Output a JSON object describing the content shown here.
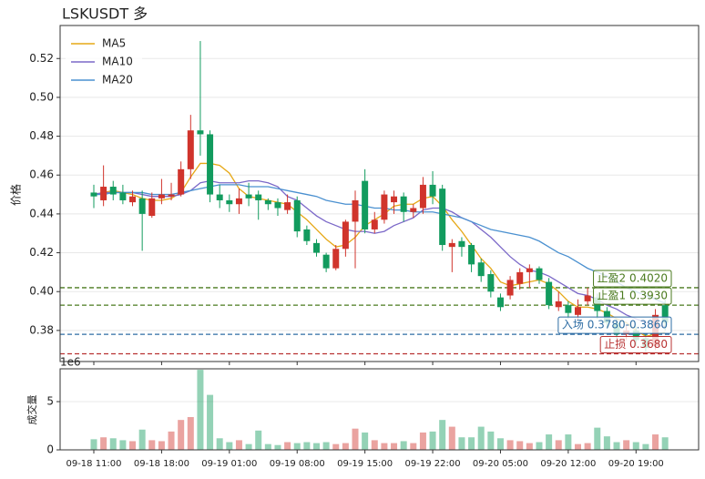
{
  "chart_data": {
    "type": "candlestick",
    "title": "LSKUSDT 多",
    "ylabel": "价格",
    "categories": [
      "09-18 11:00",
      null,
      null,
      null,
      null,
      null,
      null,
      "09-18 18:00",
      null,
      null,
      null,
      null,
      null,
      null,
      "09-19 01:00",
      null,
      null,
      null,
      null,
      null,
      null,
      "09-19 08:00",
      null,
      null,
      null,
      null,
      null,
      null,
      "09-19 15:00",
      null,
      null,
      null,
      null,
      null,
      null,
      "09-19 22:00",
      null,
      null,
      null,
      null,
      null,
      null,
      "09-20 05:00",
      null,
      null,
      null,
      null,
      null,
      null,
      "09-20 12:00",
      null,
      null,
      null,
      null,
      null,
      null,
      "09-20 19:00",
      null,
      null,
      null
    ],
    "open": [
      0.451,
      0.447,
      0.454,
      0.451,
      0.446,
      0.448,
      0.439,
      0.448,
      0.449,
      0.45,
      0.463,
      0.483,
      0.481,
      0.45,
      0.447,
      0.445,
      0.45,
      0.45,
      0.447,
      0.446,
      0.442,
      0.447,
      0.432,
      0.425,
      0.419,
      0.412,
      0.422,
      0.436,
      0.457,
      0.432,
      0.437,
      0.446,
      0.449,
      0.441,
      0.443,
      0.455,
      0.453,
      0.423,
      0.426,
      0.424,
      0.415,
      0.409,
      0.397,
      0.398,
      0.404,
      0.41,
      0.412,
      0.405,
      0.392,
      0.393,
      0.388,
      0.395,
      0.397,
      0.39,
      0.384,
      0.378,
      0.38,
      0.376,
      0.372,
      0.393
    ],
    "high": [
      0.455,
      0.465,
      0.457,
      0.455,
      0.452,
      0.452,
      0.451,
      0.458,
      0.456,
      0.467,
      0.491,
      0.529,
      0.483,
      0.455,
      0.45,
      0.453,
      0.456,
      0.452,
      0.448,
      0.448,
      0.45,
      0.449,
      0.434,
      0.427,
      0.42,
      0.424,
      0.437,
      0.452,
      0.463,
      0.441,
      0.452,
      0.452,
      0.451,
      0.445,
      0.459,
      0.462,
      0.455,
      0.427,
      0.428,
      0.425,
      0.417,
      0.411,
      0.399,
      0.408,
      0.412,
      0.414,
      0.413,
      0.407,
      0.4,
      0.395,
      0.396,
      0.402,
      0.399,
      0.392,
      0.386,
      0.383,
      0.382,
      0.378,
      0.391,
      0.396
    ],
    "low": [
      0.443,
      0.444,
      0.447,
      0.445,
      0.444,
      0.421,
      0.438,
      0.445,
      0.447,
      0.449,
      0.458,
      0.47,
      0.446,
      0.443,
      0.441,
      0.44,
      0.444,
      0.437,
      0.442,
      0.439,
      0.44,
      0.428,
      0.424,
      0.418,
      0.41,
      0.411,
      0.418,
      0.412,
      0.43,
      0.43,
      0.435,
      0.44,
      0.436,
      0.438,
      0.44,
      0.445,
      0.421,
      0.41,
      0.418,
      0.41,
      0.405,
      0.397,
      0.39,
      0.396,
      0.401,
      0.402,
      0.404,
      0.391,
      0.39,
      0.386,
      0.385,
      0.393,
      0.386,
      0.381,
      0.376,
      0.375,
      0.372,
      0.369,
      0.37,
      0.38
    ],
    "close": [
      0.449,
      0.454,
      0.45,
      0.447,
      0.449,
      0.44,
      0.448,
      0.45,
      0.45,
      0.463,
      0.483,
      0.481,
      0.45,
      0.447,
      0.445,
      0.448,
      0.448,
      0.447,
      0.445,
      0.443,
      0.446,
      0.431,
      0.426,
      0.42,
      0.412,
      0.422,
      0.436,
      0.447,
      0.432,
      0.437,
      0.45,
      0.449,
      0.441,
      0.443,
      0.455,
      0.449,
      0.424,
      0.425,
      0.423,
      0.414,
      0.408,
      0.4,
      0.392,
      0.406,
      0.41,
      0.412,
      0.406,
      0.393,
      0.395,
      0.389,
      0.392,
      0.398,
      0.39,
      0.384,
      0.378,
      0.38,
      0.375,
      0.371,
      0.388,
      0.384
    ],
    "up_color": "#d0342c",
    "down_color": "#129b5e",
    "ylim": [
      0.364,
      0.537
    ],
    "yticks": [
      0.38,
      {
        "value": 0.4,
        "label": "0.40"
      },
      0.42,
      0.44,
      0.46,
      0.48,
      {
        "value": 0.5,
        "label": "0.50"
      },
      0.52
    ],
    "grid": true,
    "legend": "upper left",
    "series": [
      {
        "name": "MA5",
        "color": "#e6a817",
        "values": [
          0.45,
          0.451,
          0.452,
          0.451,
          0.45,
          0.448,
          0.447,
          0.447,
          0.448,
          0.451,
          0.459,
          0.466,
          0.466,
          0.465,
          0.461,
          0.453,
          0.449,
          0.448,
          0.447,
          0.446,
          0.445,
          0.441,
          0.437,
          0.432,
          0.427,
          0.423,
          0.424,
          0.428,
          0.434,
          0.437,
          0.44,
          0.444,
          0.445,
          0.445,
          0.448,
          0.449,
          0.444,
          0.437,
          0.431,
          0.424,
          0.417,
          0.412,
          0.405,
          0.403,
          0.404,
          0.405,
          0.406,
          0.404,
          0.4,
          0.395,
          0.392,
          0.392,
          0.391,
          0.389,
          0.386,
          0.384,
          0.38,
          0.377,
          0.378,
          0.379
        ]
      },
      {
        "name": "MA10",
        "color": "#7b68c8",
        "values": [
          0.45,
          0.451,
          0.451,
          0.451,
          0.451,
          0.45,
          0.449,
          0.449,
          0.449,
          0.45,
          0.452,
          0.456,
          0.457,
          0.456,
          0.456,
          0.456,
          0.457,
          0.457,
          0.456,
          0.454,
          0.449,
          0.447,
          0.443,
          0.439,
          0.436,
          0.434,
          0.432,
          0.431,
          0.431,
          0.43,
          0.431,
          0.434,
          0.436,
          0.438,
          0.442,
          0.443,
          0.443,
          0.441,
          0.438,
          0.436,
          0.432,
          0.428,
          0.423,
          0.418,
          0.414,
          0.411,
          0.41,
          0.408,
          0.405,
          0.402,
          0.399,
          0.398,
          0.396,
          0.393,
          0.391,
          0.388,
          0.386,
          0.384,
          0.383,
          0.382
        ]
      },
      {
        "name": "MA20",
        "color": "#4a90d0",
        "values": [
          0.45,
          0.45,
          0.451,
          0.451,
          0.451,
          0.451,
          0.45,
          0.45,
          0.45,
          0.451,
          0.452,
          0.453,
          0.454,
          0.455,
          0.455,
          0.455,
          0.454,
          0.454,
          0.454,
          0.453,
          0.452,
          0.451,
          0.45,
          0.449,
          0.447,
          0.446,
          0.445,
          0.445,
          0.444,
          0.443,
          0.443,
          0.442,
          0.442,
          0.441,
          0.441,
          0.441,
          0.44,
          0.439,
          0.438,
          0.436,
          0.434,
          0.432,
          0.431,
          0.43,
          0.429,
          0.428,
          0.426,
          0.423,
          0.42,
          0.418,
          0.415,
          0.412,
          0.41,
          0.408,
          0.405,
          0.402,
          0.4,
          0.398,
          0.396,
          0.394
        ]
      }
    ],
    "hlines": [
      {
        "label": "止盈2 0.4020",
        "value": 0.402,
        "color": "#4a7a1e"
      },
      {
        "label": "止盈1 0.3930",
        "value": 0.393,
        "color": "#4a7a1e"
      },
      {
        "label": "入场 0.3780-0.3860",
        "value": 0.378,
        "color": "#2e6da4"
      },
      {
        "label": "止损 0.3680",
        "value": 0.368,
        "color": "#b83232"
      }
    ],
    "volume": {
      "ylabel": "成交量",
      "offset_label": "1e6",
      "values": [
        1.1,
        1.3,
        1.2,
        1.0,
        0.9,
        2.1,
        1.0,
        0.9,
        1.9,
        3.1,
        3.4,
        8.3,
        5.7,
        1.2,
        0.8,
        1.0,
        0.6,
        2.0,
        0.6,
        0.5,
        0.8,
        0.7,
        0.8,
        0.7,
        0.8,
        0.6,
        0.7,
        2.2,
        1.8,
        1.0,
        0.7,
        0.7,
        0.9,
        0.7,
        1.8,
        1.9,
        3.1,
        2.4,
        1.3,
        1.3,
        2.4,
        1.9,
        1.2,
        1.0,
        0.9,
        0.7,
        0.8,
        1.6,
        1.0,
        1.6,
        0.6,
        0.7,
        2.3,
        1.4,
        0.8,
        1.0,
        0.8,
        0.6,
        1.6,
        1.3
      ],
      "ylim": [
        0,
        8.4
      ],
      "yticks": [
        0,
        5
      ]
    }
  }
}
